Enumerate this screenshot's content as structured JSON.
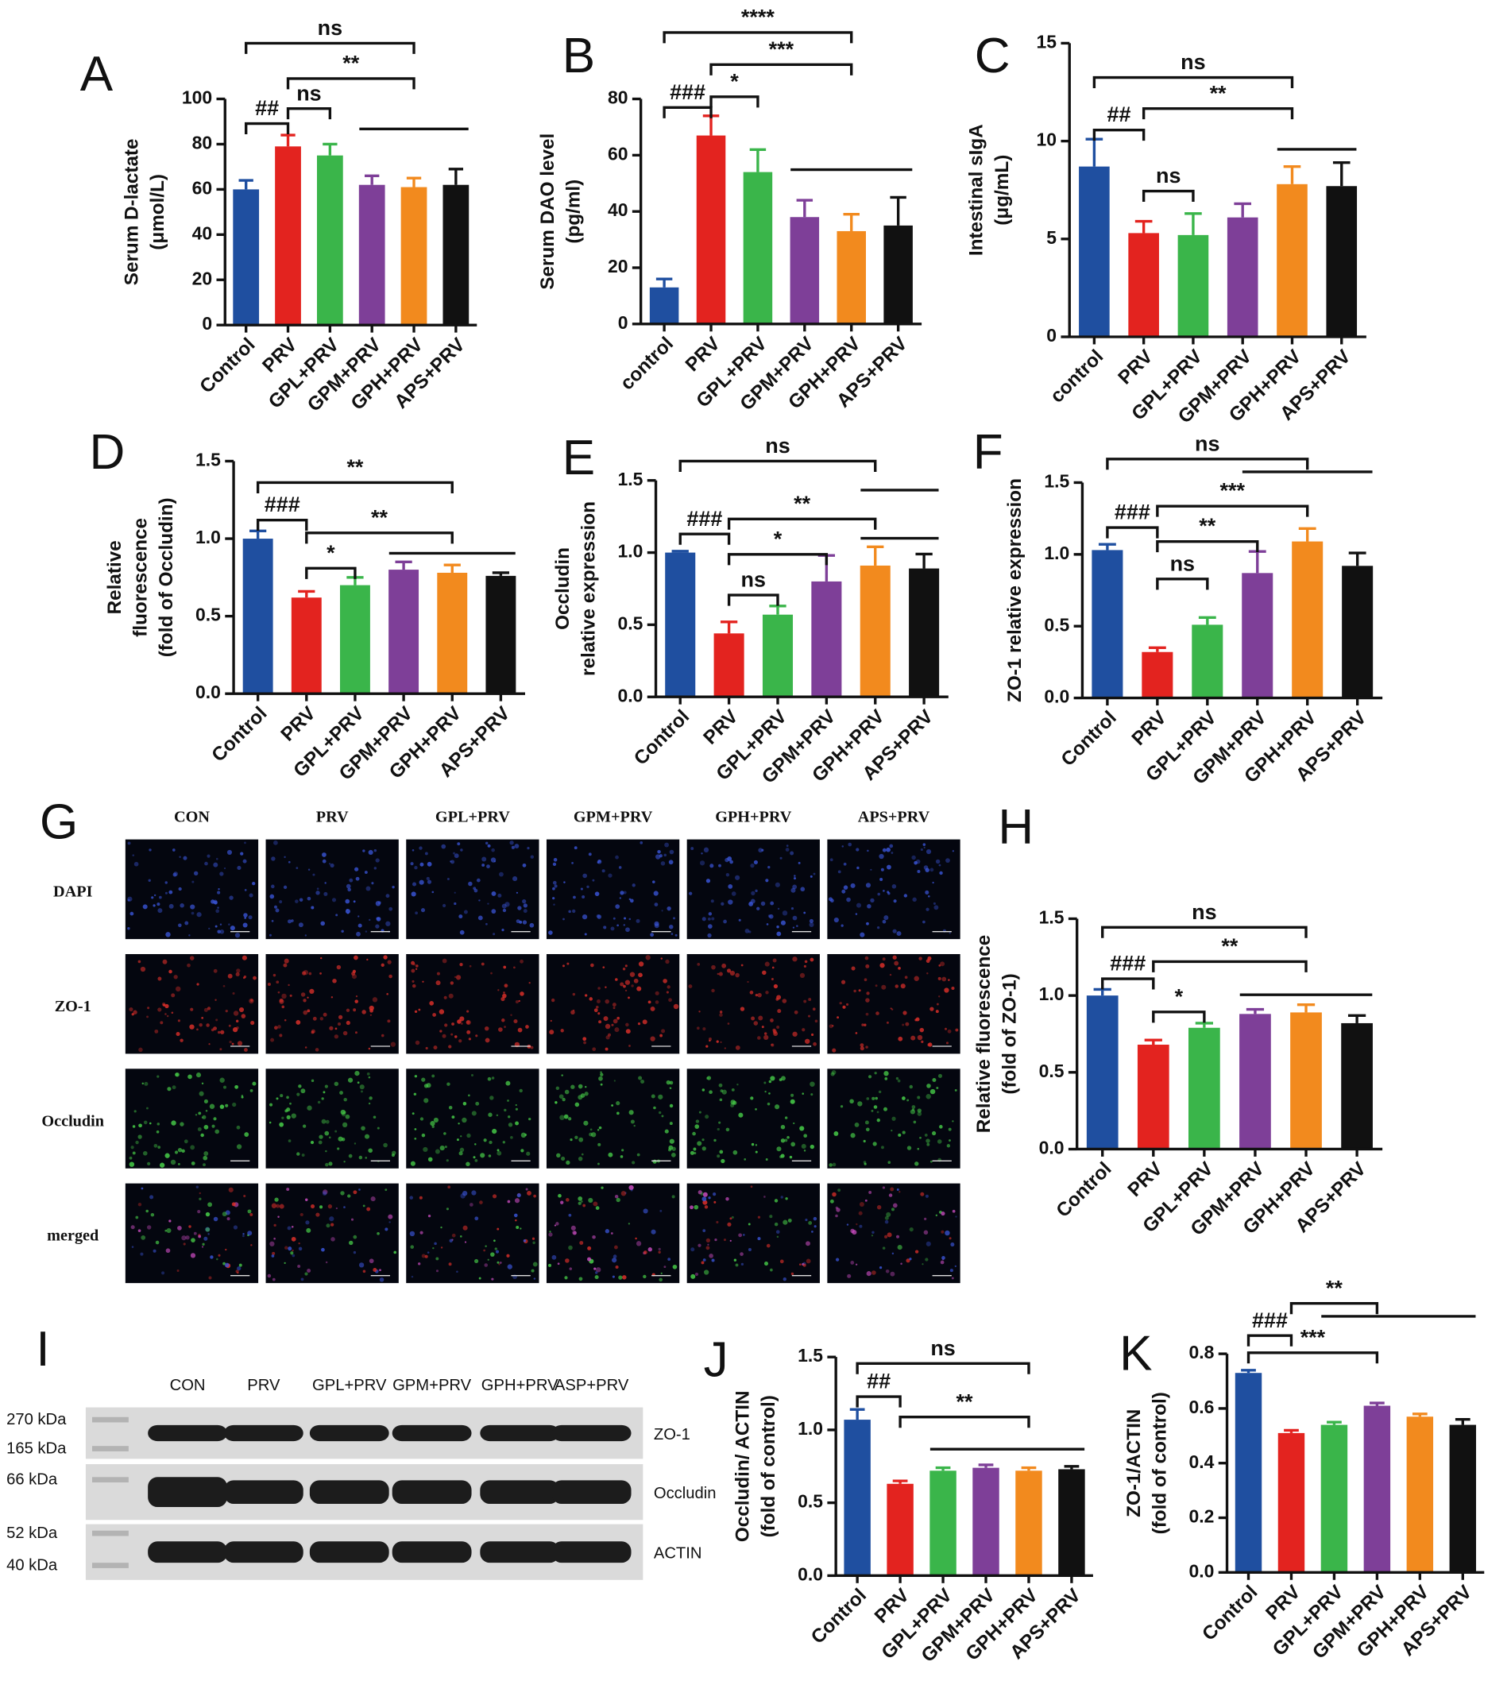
{
  "chart_data": [
    {
      "type": "bar",
      "label": "A",
      "y_label": [
        "Serum D-lactate",
        "(μmol/L)"
      ],
      "categories": [
        "Control",
        "PRV",
        "GPL+PRV",
        "GPM+PRV",
        "GPH+PRV",
        "APS+PRV"
      ],
      "values": [
        60,
        79,
        75,
        62,
        61,
        62
      ],
      "errors": [
        4,
        5,
        5,
        4,
        4,
        7
      ],
      "colors": [
        "#1f4fa0",
        "#e3231f",
        "#3ab54a",
        "#7e3f98",
        "#f28a1e",
        "#111111"
      ],
      "ylim": [
        0,
        100
      ],
      "yticks": [
        0,
        20,
        40,
        60,
        80,
        100
      ],
      "annotations": [
        "ns",
        "**",
        "##",
        "ns"
      ]
    },
    {
      "type": "bar",
      "label": "B",
      "y_label": [
        "Serum DAO level",
        "(pg/ml)"
      ],
      "categories": [
        "control",
        "PRV",
        "GPL+PRV",
        "GPM+PRV",
        "GPH+PRV",
        "APS+PRV"
      ],
      "values": [
        13,
        67,
        54,
        38,
        33,
        35
      ],
      "errors": [
        3,
        7,
        8,
        6,
        6,
        10
      ],
      "colors": [
        "#1f4fa0",
        "#e3231f",
        "#3ab54a",
        "#7e3f98",
        "#f28a1e",
        "#111111"
      ],
      "ylim": [
        0,
        80
      ],
      "yticks": [
        0,
        20,
        40,
        60,
        80
      ],
      "annotations": [
        "****",
        "***",
        "###",
        "*"
      ]
    },
    {
      "type": "bar",
      "label": "C",
      "y_label": [
        "Intestinal sIgA",
        "(μg/mL)"
      ],
      "categories": [
        "control",
        "PRV",
        "GPL+PRV",
        "GPM+PRV",
        "GPH+PRV",
        "APS+PRV"
      ],
      "values": [
        8.7,
        5.3,
        5.2,
        6.1,
        7.8,
        7.7
      ],
      "errors": [
        1.4,
        0.6,
        1.1,
        0.7,
        0.9,
        1.2
      ],
      "colors": [
        "#1f4fa0",
        "#e3231f",
        "#3ab54a",
        "#7e3f98",
        "#f28a1e",
        "#111111"
      ],
      "ylim": [
        0,
        15
      ],
      "yticks": [
        0,
        5,
        10,
        15
      ],
      "annotations": [
        "ns",
        "##",
        "**",
        "ns"
      ]
    },
    {
      "type": "bar",
      "label": "D",
      "y_label": [
        "Relative",
        "fluorescence",
        "(fold of Occludin)"
      ],
      "categories": [
        "Control",
        "PRV",
        "GPL+PRV",
        "GPM+PRV",
        "GPH+PRV",
        "APS+PRV"
      ],
      "values": [
        1.0,
        0.62,
        0.7,
        0.8,
        0.78,
        0.76
      ],
      "errors": [
        0.05,
        0.04,
        0.05,
        0.05,
        0.05,
        0.02
      ],
      "colors": [
        "#1f4fa0",
        "#e3231f",
        "#3ab54a",
        "#7e3f98",
        "#f28a1e",
        "#111111"
      ],
      "ylim": [
        0,
        1.5
      ],
      "yticks": [
        {
          "value": 0,
          "label": "0.0"
        },
        0.5,
        {
          "value": 1,
          "label": "1.0"
        },
        1.5
      ],
      "annotations": [
        "**",
        "###",
        "**",
        "*"
      ]
    },
    {
      "type": "bar",
      "label": "E",
      "y_label": [
        "Occludin",
        "relative expression"
      ],
      "categories": [
        "Control",
        "PRV",
        "GPL+PRV",
        "GPM+PRV",
        "GPH+PRV",
        "APS+PRV"
      ],
      "values": [
        1.0,
        0.44,
        0.57,
        0.8,
        0.91,
        0.89
      ],
      "errors": [
        0.01,
        0.08,
        0.06,
        0.18,
        0.13,
        0.1
      ],
      "colors": [
        "#1f4fa0",
        "#e3231f",
        "#3ab54a",
        "#7e3f98",
        "#f28a1e",
        "#111111"
      ],
      "ylim": [
        0,
        1.5
      ],
      "yticks": [
        {
          "value": 0,
          "label": "0.0"
        },
        0.5,
        {
          "value": 1,
          "label": "1.0"
        },
        1.5
      ],
      "annotations": [
        "ns",
        "###",
        "**",
        "*",
        "ns"
      ]
    },
    {
      "type": "bar",
      "label": "F",
      "y_label": [
        "ZO-1 relative expression"
      ],
      "categories": [
        "Control",
        "PRV",
        "GPL+PRV",
        "GPM+PRV",
        "GPH+PRV",
        "APS+PRV"
      ],
      "values": [
        1.03,
        0.32,
        0.51,
        0.87,
        1.09,
        0.92
      ],
      "errors": [
        0.04,
        0.03,
        0.05,
        0.15,
        0.09,
        0.09
      ],
      "colors": [
        "#1f4fa0",
        "#e3231f",
        "#3ab54a",
        "#7e3f98",
        "#f28a1e",
        "#111111"
      ],
      "ylim": [
        0,
        1.5
      ],
      "yticks": [
        {
          "value": 0,
          "label": "0.0"
        },
        0.5,
        {
          "value": 1,
          "label": "1.0"
        },
        1.5
      ],
      "annotations": [
        "ns",
        "###",
        "***",
        "**",
        "ns"
      ]
    },
    {
      "type": "bar",
      "label": "H",
      "y_label": [
        "Relative fluorescence",
        "(fold of ZO-1)"
      ],
      "categories": [
        "Control",
        "PRV",
        "GPL+PRV",
        "GPM+PRV",
        "GPH+PRV",
        "APS+PRV"
      ],
      "values": [
        1.0,
        0.68,
        0.79,
        0.88,
        0.89,
        0.82
      ],
      "errors": [
        0.04,
        0.03,
        0.03,
        0.03,
        0.05,
        0.05
      ],
      "colors": [
        "#1f4fa0",
        "#e3231f",
        "#3ab54a",
        "#7e3f98",
        "#f28a1e",
        "#111111"
      ],
      "ylim": [
        0,
        1.5
      ],
      "yticks": [
        {
          "value": 0,
          "label": "0.0"
        },
        0.5,
        {
          "value": 1,
          "label": "1.0"
        },
        1.5
      ],
      "annotations": [
        "ns",
        "###",
        "**",
        "*"
      ]
    },
    {
      "type": "bar",
      "label": "J",
      "y_label": [
        "Occludin/ ACTIN",
        "(fold of control)"
      ],
      "categories": [
        "Control",
        "PRV",
        "GPL+PRV",
        "GPM+PRV",
        "GPH+PRV",
        "APS+PRV"
      ],
      "values": [
        1.07,
        0.63,
        0.72,
        0.74,
        0.72,
        0.73
      ],
      "errors": [
        0.07,
        0.02,
        0.02,
        0.02,
        0.02,
        0.02
      ],
      "colors": [
        "#1f4fa0",
        "#e3231f",
        "#3ab54a",
        "#7e3f98",
        "#f28a1e",
        "#111111"
      ],
      "ylim": [
        0,
        1.5
      ],
      "yticks": [
        {
          "value": 0,
          "label": "0.0"
        },
        0.5,
        {
          "value": 1,
          "label": "1.0"
        },
        1.5
      ],
      "annotations": [
        "ns",
        "##",
        "**"
      ]
    },
    {
      "type": "bar",
      "label": "K",
      "y_label": [
        "ZO-1/ACTIN",
        "(fold of control)"
      ],
      "categories": [
        "Control",
        "PRV",
        "GPL+PRV",
        "GPM+PRV",
        "GPH+PRV",
        "APS+PRV"
      ],
      "values": [
        0.73,
        0.51,
        0.54,
        0.61,
        0.57,
        0.54
      ],
      "errors": [
        0.01,
        0.01,
        0.01,
        0.01,
        0.01,
        0.02
      ],
      "colors": [
        "#1f4fa0",
        "#e3231f",
        "#3ab54a",
        "#7e3f98",
        "#f28a1e",
        "#111111"
      ],
      "ylim": [
        0,
        0.8
      ],
      "yticks": [
        {
          "value": 0,
          "label": "0.0"
        },
        0.2,
        0.4,
        0.6,
        0.8
      ],
      "annotations": [
        "###",
        "**",
        "***"
      ]
    }
  ],
  "micrographs": {
    "label": "G",
    "columns": [
      "CON",
      "PRV",
      "GPL+PRV",
      "GPM+PRV",
      "GPH+PRV",
      "APS+PRV"
    ],
    "rows": [
      "DAPI",
      "ZO-1",
      "Occludin",
      "merged"
    ]
  },
  "western_blot": {
    "label": "I",
    "columns": [
      "CON",
      "PRV",
      "GPL+PRV",
      "GPM+PRV",
      "GPH+PRV",
      "ASP+PRV"
    ],
    "markers": [
      "270 kDa",
      "165 kDa",
      "66 kDa",
      "52 kDa",
      "40 kDa"
    ],
    "proteins": [
      "ZO-1",
      "Occludin",
      "ACTIN"
    ]
  }
}
